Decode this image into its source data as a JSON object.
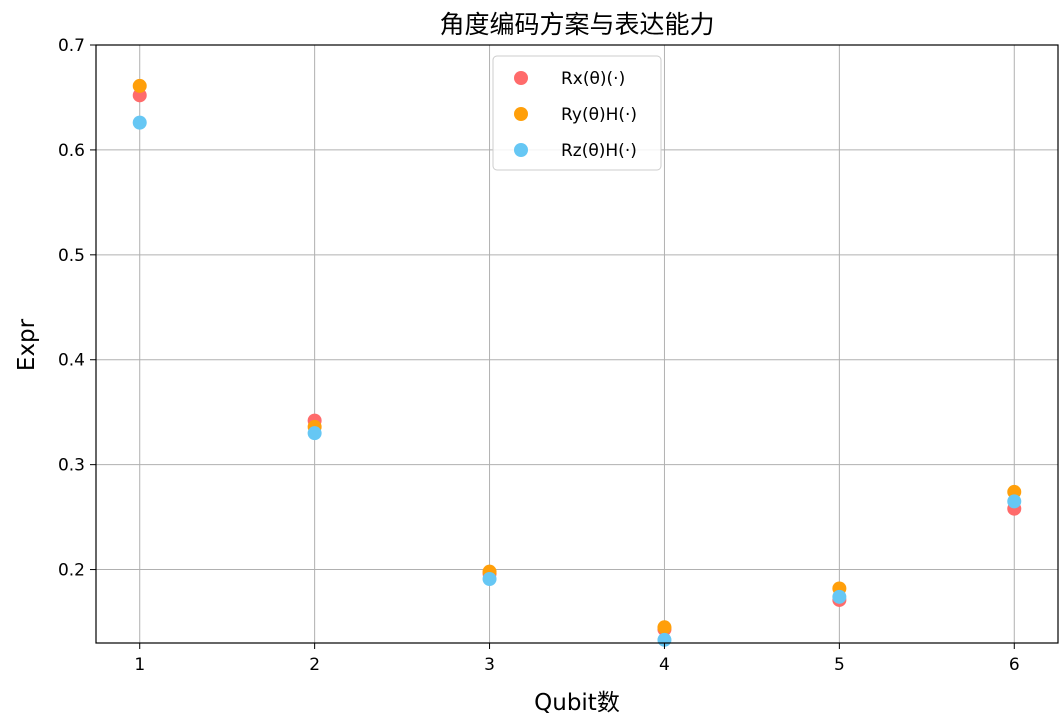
{
  "chart_data": {
    "type": "scatter",
    "title": "角度编码方案与表达能力",
    "xlabel": "Qubit数",
    "ylabel": "Expr",
    "x": [
      1,
      2,
      3,
      4,
      5,
      6
    ],
    "xticks": [
      "1",
      "2",
      "3",
      "4",
      "5",
      "6"
    ],
    "yticks": [
      "0.2",
      "0.3",
      "0.4",
      "0.5",
      "0.6",
      "0.7"
    ],
    "xlim": [
      0.75,
      6.25
    ],
    "ylim": [
      0.13,
      0.7
    ],
    "grid": true,
    "legend_position": "top-center",
    "series": [
      {
        "name": "Rx(θ)(·)",
        "color": "#ff6b6b",
        "values": [
          0.652,
          0.342,
          0.196,
          0.143,
          0.171,
          0.258
        ]
      },
      {
        "name": "Ry(θ)H(·)",
        "color": "#ff9f0a",
        "values": [
          0.661,
          0.336,
          0.198,
          0.145,
          0.182,
          0.274
        ]
      },
      {
        "name": "Rz(θ)H(·)",
        "color": "#66c7f4",
        "values": [
          0.626,
          0.33,
          0.191,
          0.133,
          0.174,
          0.265
        ]
      }
    ]
  }
}
